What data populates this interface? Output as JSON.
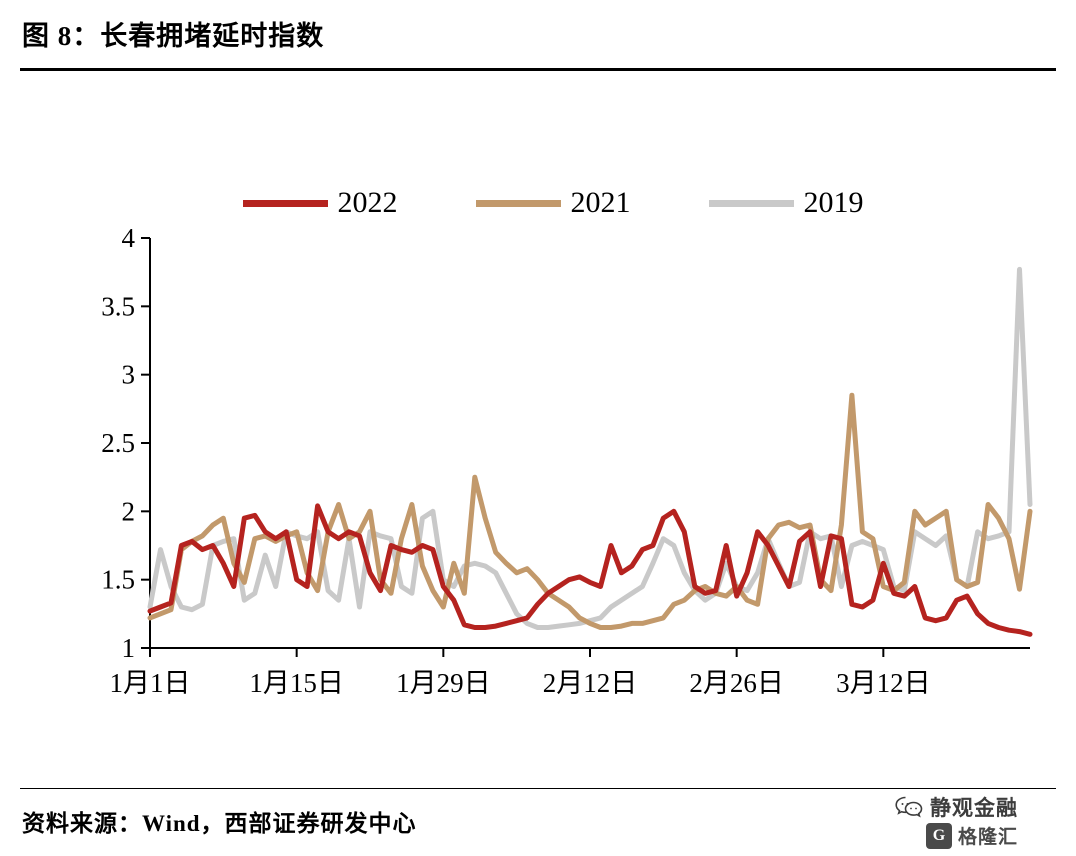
{
  "header": {
    "title": "图 8：长春拥堵延时指数"
  },
  "footer": {
    "source": "资料来源：Wind，西部证券研发中心",
    "watermark_brand": "静观金融",
    "watermark_logo_letter": "G",
    "watermark_logo_text": "格隆汇"
  },
  "chart_data": {
    "type": "line",
    "title": "长春拥堵延时指数",
    "grid": false,
    "legend_position": "top",
    "ylim": [
      1,
      4
    ],
    "y_ticks": [
      1,
      1.5,
      2,
      2.5,
      3,
      3.5,
      4
    ],
    "x_tick_labels": [
      "1月1日",
      "1月15日",
      "1月29日",
      "2月12日",
      "2月26日",
      "3月12日"
    ],
    "x_tick_day_index": [
      0,
      14,
      28,
      42,
      56,
      70
    ],
    "days_total": 85,
    "series": [
      {
        "name": "2022",
        "color": "#b5231f",
        "values": [
          1.27,
          1.3,
          1.33,
          1.75,
          1.78,
          1.72,
          1.75,
          1.62,
          1.45,
          1.95,
          1.97,
          1.85,
          1.8,
          1.85,
          1.5,
          1.45,
          2.04,
          1.85,
          1.8,
          1.85,
          1.82,
          1.55,
          1.42,
          1.75,
          1.72,
          1.7,
          1.75,
          1.72,
          1.45,
          1.35,
          1.17,
          1.15,
          1.15,
          1.16,
          1.18,
          1.2,
          1.22,
          1.32,
          1.4,
          1.45,
          1.5,
          1.52,
          1.48,
          1.45,
          1.75,
          1.55,
          1.6,
          1.72,
          1.75,
          1.95,
          2.0,
          1.85,
          1.45,
          1.4,
          1.42,
          1.75,
          1.38,
          1.55,
          1.85,
          1.75,
          1.6,
          1.45,
          1.78,
          1.85,
          1.45,
          1.82,
          1.8,
          1.32,
          1.3,
          1.35,
          1.62,
          1.4,
          1.38,
          1.45,
          1.22,
          1.2,
          1.22,
          1.35,
          1.38,
          1.25,
          1.18,
          1.15,
          1.13,
          1.12,
          1.1
        ]
      },
      {
        "name": "2021",
        "color": "#c2996b",
        "values": [
          1.22,
          1.25,
          1.28,
          1.72,
          1.78,
          1.82,
          1.9,
          1.95,
          1.62,
          1.48,
          1.8,
          1.82,
          1.78,
          1.82,
          1.85,
          1.55,
          1.42,
          1.85,
          2.05,
          1.8,
          1.85,
          2.0,
          1.5,
          1.4,
          1.8,
          2.05,
          1.6,
          1.42,
          1.3,
          1.62,
          1.4,
          2.25,
          1.95,
          1.7,
          1.62,
          1.55,
          1.58,
          1.5,
          1.4,
          1.35,
          1.3,
          1.22,
          1.18,
          1.15,
          1.15,
          1.16,
          1.18,
          1.18,
          1.2,
          1.22,
          1.32,
          1.35,
          1.42,
          1.45,
          1.4,
          1.38,
          1.45,
          1.35,
          1.32,
          1.8,
          1.9,
          1.92,
          1.88,
          1.9,
          1.5,
          1.42,
          1.9,
          2.85,
          1.85,
          1.8,
          1.45,
          1.42,
          1.48,
          2.0,
          1.9,
          1.95,
          2.0,
          1.5,
          1.45,
          1.48,
          2.05,
          1.95,
          1.8,
          1.43,
          2.0
        ]
      },
      {
        "name": "2019",
        "color": "#c9c9c9",
        "values": [
          1.3,
          1.72,
          1.45,
          1.3,
          1.28,
          1.32,
          1.75,
          1.78,
          1.8,
          1.35,
          1.4,
          1.68,
          1.45,
          1.85,
          1.82,
          1.8,
          1.85,
          1.42,
          1.35,
          1.8,
          1.3,
          1.85,
          1.82,
          1.8,
          1.45,
          1.4,
          1.95,
          2.0,
          1.5,
          1.45,
          1.6,
          1.62,
          1.6,
          1.55,
          1.4,
          1.25,
          1.18,
          1.15,
          1.15,
          1.16,
          1.17,
          1.18,
          1.2,
          1.22,
          1.3,
          1.35,
          1.4,
          1.45,
          1.62,
          1.8,
          1.75,
          1.55,
          1.42,
          1.35,
          1.4,
          1.62,
          1.45,
          1.42,
          1.55,
          1.8,
          1.62,
          1.45,
          1.48,
          1.85,
          1.8,
          1.82,
          1.45,
          1.75,
          1.78,
          1.75,
          1.72,
          1.45,
          1.42,
          1.85,
          1.8,
          1.75,
          1.82,
          1.5,
          1.45,
          1.85,
          1.8,
          1.82,
          1.85,
          3.77,
          2.05
        ]
      }
    ]
  }
}
